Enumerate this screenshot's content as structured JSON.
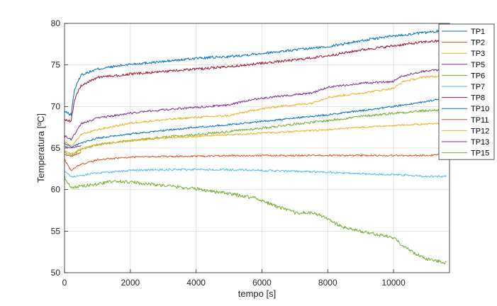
{
  "chart_data": {
    "type": "line",
    "xlabel": "tempo [s]",
    "ylabel": "Temperatura [ºC]",
    "xlim": [
      0,
      11700
    ],
    "ylim": [
      50,
      80
    ],
    "xticks": [
      0,
      2000,
      4000,
      6000,
      8000,
      10000
    ],
    "yticks": [
      50,
      55,
      60,
      65,
      70,
      75,
      80
    ],
    "xtick_labels": [
      "0",
      "2000",
      "4000",
      "6000",
      "8000",
      "10000"
    ],
    "ytick_labels": [
      "50",
      "55",
      "60",
      "65",
      "70",
      "75",
      "80"
    ],
    "grid": true,
    "legend_position": "top-right",
    "series": [
      {
        "name": "TP1",
        "color": "#0072BD",
        "noise": 0.15,
        "points": [
          [
            0,
            69.4
          ],
          [
            200,
            69.0
          ],
          [
            300,
            72.0
          ],
          [
            500,
            73.8
          ],
          [
            1000,
            74.5
          ],
          [
            2000,
            75.1
          ],
          [
            3000,
            75.4
          ],
          [
            4000,
            75.8
          ],
          [
            5000,
            76.0
          ],
          [
            6000,
            76.4
          ],
          [
            7000,
            76.8
          ],
          [
            8000,
            77.2
          ],
          [
            9000,
            77.9
          ],
          [
            10000,
            78.5
          ],
          [
            11000,
            78.9
          ],
          [
            11600,
            79.2
          ]
        ]
      },
      {
        "name": "TP2",
        "color": "#D95319",
        "noise": 0.1,
        "points": [
          [
            0,
            63.6
          ],
          [
            200,
            62.3
          ],
          [
            400,
            62.9
          ],
          [
            1000,
            63.6
          ],
          [
            2000,
            63.9
          ],
          [
            3000,
            64.0
          ],
          [
            4000,
            64.0
          ],
          [
            5000,
            64.1
          ],
          [
            6000,
            64.1
          ],
          [
            7000,
            64.1
          ],
          [
            8000,
            64.1
          ],
          [
            9000,
            64.1
          ],
          [
            10000,
            64.1
          ],
          [
            11000,
            64.1
          ],
          [
            11600,
            64.2
          ]
        ]
      },
      {
        "name": "TP3",
        "color": "#EDB120",
        "noise": 0.12,
        "points": [
          [
            0,
            65.8
          ],
          [
            200,
            65.2
          ],
          [
            500,
            66.6
          ],
          [
            1000,
            67.2
          ],
          [
            2000,
            68.0
          ],
          [
            3000,
            68.4
          ],
          [
            4000,
            68.7
          ],
          [
            5000,
            68.9
          ],
          [
            5800,
            69.6
          ],
          [
            6500,
            70.0
          ],
          [
            7500,
            70.4
          ],
          [
            8000,
            71.1
          ],
          [
            9000,
            71.6
          ],
          [
            10000,
            72.2
          ],
          [
            10300,
            73.0
          ],
          [
            11000,
            73.6
          ],
          [
            11600,
            73.6
          ]
        ]
      },
      {
        "name": "TP5",
        "color": "#7E2F8E",
        "noise": 0.12,
        "points": [
          [
            0,
            66.5
          ],
          [
            200,
            66.0
          ],
          [
            500,
            67.9
          ],
          [
            1000,
            68.6
          ],
          [
            2000,
            69.2
          ],
          [
            3000,
            69.6
          ],
          [
            4000,
            69.9
          ],
          [
            5000,
            70.2
          ],
          [
            5800,
            70.9
          ],
          [
            6500,
            71.2
          ],
          [
            7500,
            71.6
          ],
          [
            8000,
            72.3
          ],
          [
            9000,
            72.8
          ],
          [
            10000,
            73.0
          ],
          [
            10200,
            73.6
          ],
          [
            11000,
            74.3
          ],
          [
            11600,
            74.4
          ]
        ]
      },
      {
        "name": "TP6",
        "color": "#77AC30",
        "noise": 0.15,
        "points": [
          [
            0,
            64.5
          ],
          [
            200,
            64.1
          ],
          [
            500,
            64.8
          ],
          [
            1000,
            65.4
          ],
          [
            2000,
            65.9
          ],
          [
            3000,
            66.3
          ],
          [
            4000,
            66.6
          ],
          [
            5000,
            67.0
          ],
          [
            6000,
            67.4
          ],
          [
            7000,
            67.9
          ],
          [
            8000,
            68.3
          ],
          [
            9000,
            68.8
          ],
          [
            10000,
            69.2
          ],
          [
            11000,
            69.5
          ],
          [
            11600,
            69.6
          ]
        ]
      },
      {
        "name": "TP7",
        "color": "#4DBEEE",
        "noise": 0.12,
        "points": [
          [
            0,
            62.3
          ],
          [
            200,
            61.5
          ],
          [
            500,
            61.7
          ],
          [
            1000,
            62.0
          ],
          [
            2000,
            62.3
          ],
          [
            3000,
            62.4
          ],
          [
            4000,
            62.4
          ],
          [
            5000,
            62.4
          ],
          [
            6000,
            62.3
          ],
          [
            7000,
            62.2
          ],
          [
            8000,
            62.1
          ],
          [
            9000,
            61.9
          ],
          [
            10000,
            61.8
          ],
          [
            11000,
            61.6
          ],
          [
            11600,
            61.6
          ]
        ]
      },
      {
        "name": "TP8",
        "color": "#A2142F",
        "noise": 0.15,
        "points": [
          [
            0,
            68.4
          ],
          [
            200,
            68.2
          ],
          [
            300,
            70.8
          ],
          [
            500,
            72.5
          ],
          [
            1000,
            73.5
          ],
          [
            2000,
            73.9
          ],
          [
            3000,
            74.2
          ],
          [
            4000,
            74.5
          ],
          [
            5000,
            74.8
          ],
          [
            6000,
            75.2
          ],
          [
            7000,
            75.6
          ],
          [
            8000,
            76.1
          ],
          [
            9000,
            76.8
          ],
          [
            10000,
            77.3
          ],
          [
            11000,
            77.8
          ],
          [
            11600,
            77.9
          ]
        ]
      },
      {
        "name": "TP10",
        "color": "#0072BD",
        "noise": 0.1,
        "points": [
          [
            0,
            65.6
          ],
          [
            200,
            65.1
          ],
          [
            500,
            65.6
          ],
          [
            1000,
            66.2
          ],
          [
            2000,
            66.7
          ],
          [
            3000,
            67.1
          ],
          [
            4000,
            67.5
          ],
          [
            5000,
            67.8
          ],
          [
            6000,
            68.2
          ],
          [
            7000,
            68.6
          ],
          [
            8000,
            69.0
          ],
          [
            9000,
            69.5
          ],
          [
            10000,
            70.0
          ],
          [
            11000,
            70.6
          ],
          [
            11600,
            71.0
          ]
        ]
      },
      {
        "name": "TP11",
        "color": "#D95319",
        "noise": 0.05,
        "points": [
          [
            0,
            64.2
          ],
          [
            200,
            64.0
          ],
          [
            400,
            64.3
          ],
          [
            500,
            64.5
          ]
        ]
      },
      {
        "name": "TP12",
        "color": "#EDB120",
        "noise": 0.1,
        "points": [
          [
            0,
            64.7
          ],
          [
            200,
            64.3
          ],
          [
            500,
            64.9
          ],
          [
            1000,
            65.4
          ],
          [
            2000,
            65.9
          ],
          [
            3000,
            66.2
          ],
          [
            4000,
            66.4
          ],
          [
            5000,
            66.6
          ],
          [
            6000,
            66.8
          ],
          [
            7000,
            67.0
          ],
          [
            8000,
            67.2
          ],
          [
            9000,
            67.5
          ],
          [
            10000,
            67.7
          ],
          [
            11000,
            67.9
          ],
          [
            11600,
            68.0
          ]
        ]
      },
      {
        "name": "TP13",
        "color": "#7E2F8E",
        "noise": 0.05,
        "points": [
          [
            0,
            65.2
          ],
          [
            200,
            65.0
          ],
          [
            400,
            65.2
          ],
          [
            500,
            65.3
          ]
        ]
      },
      {
        "name": "TP15",
        "color": "#77AC30",
        "noise": 0.2,
        "points": [
          [
            0,
            61.5
          ],
          [
            200,
            60.2
          ],
          [
            500,
            60.4
          ],
          [
            1000,
            60.7
          ],
          [
            1500,
            61.0
          ],
          [
            2000,
            60.9
          ],
          [
            3000,
            60.5
          ],
          [
            4000,
            60.1
          ],
          [
            4500,
            59.8
          ],
          [
            5000,
            59.5
          ],
          [
            5800,
            59.0
          ],
          [
            6500,
            57.9
          ],
          [
            7000,
            57.2
          ],
          [
            7500,
            57.2
          ],
          [
            7800,
            56.9
          ],
          [
            8200,
            56.0
          ],
          [
            8500,
            55.4
          ],
          [
            9000,
            55.0
          ],
          [
            9500,
            54.6
          ],
          [
            10000,
            54.2
          ],
          [
            10300,
            53.2
          ],
          [
            10700,
            52.2
          ],
          [
            11000,
            51.7
          ],
          [
            11600,
            51.2
          ]
        ]
      }
    ]
  }
}
